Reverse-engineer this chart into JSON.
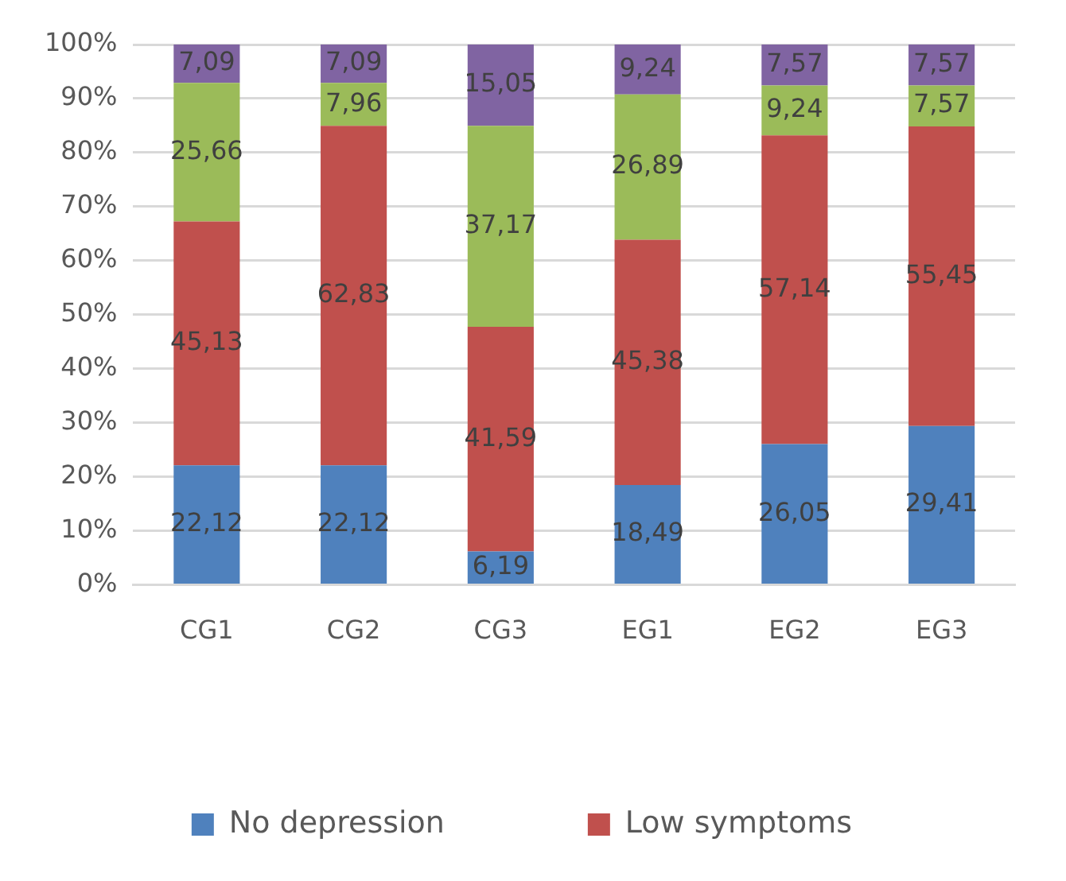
{
  "chart_data": {
    "type": "bar",
    "stacked": true,
    "categories": [
      "CG1",
      "CG2",
      "CG3",
      "EG1",
      "EG2",
      "EG3"
    ],
    "series": [
      {
        "name": "No depression",
        "color": "#4f81bd",
        "values": [
          22.12,
          22.12,
          6.19,
          18.49,
          26.05,
          29.41
        ],
        "value_labels": [
          "22,12",
          "22,12",
          "6,19",
          "18,49",
          "26,05",
          "29,41"
        ]
      },
      {
        "name": "Low symptoms",
        "color": "#c0504d",
        "values": [
          45.13,
          62.83,
          41.59,
          45.38,
          57.14,
          55.45
        ],
        "value_labels": [
          "45,13",
          "62,83",
          "41,59",
          "45,38",
          "57,14",
          "55,45"
        ]
      },
      {
        "color": "#9bbb59",
        "values": [
          25.66,
          7.96,
          37.17,
          26.89,
          9.24,
          7.57
        ],
        "value_labels": [
          "25,66",
          "7,96",
          "37,17",
          "26,89",
          "9,24",
          "7,57"
        ]
      },
      {
        "color": "#8064a2",
        "values": [
          7.09,
          7.09,
          15.05,
          9.24,
          7.57,
          7.57
        ],
        "value_labels": [
          "7,09",
          "7,09",
          "15,05",
          "9,24",
          "7,57",
          "7,57"
        ]
      }
    ],
    "ylim": [
      0,
      100
    ],
    "yticks": [
      {
        "value": 0,
        "label": "0%"
      },
      {
        "value": 10,
        "label": "10%"
      },
      {
        "value": 20,
        "label": "20%"
      },
      {
        "value": 30,
        "label": "30%"
      },
      {
        "value": 40,
        "label": "40%"
      },
      {
        "value": 50,
        "label": "50%"
      },
      {
        "value": 60,
        "label": "60%"
      },
      {
        "value": 70,
        "label": "70%"
      },
      {
        "value": 80,
        "label": "80%"
      },
      {
        "value": 90,
        "label": "90%"
      },
      {
        "value": 100,
        "label": "100%"
      }
    ],
    "grid": "y",
    "legend": "bottom"
  }
}
